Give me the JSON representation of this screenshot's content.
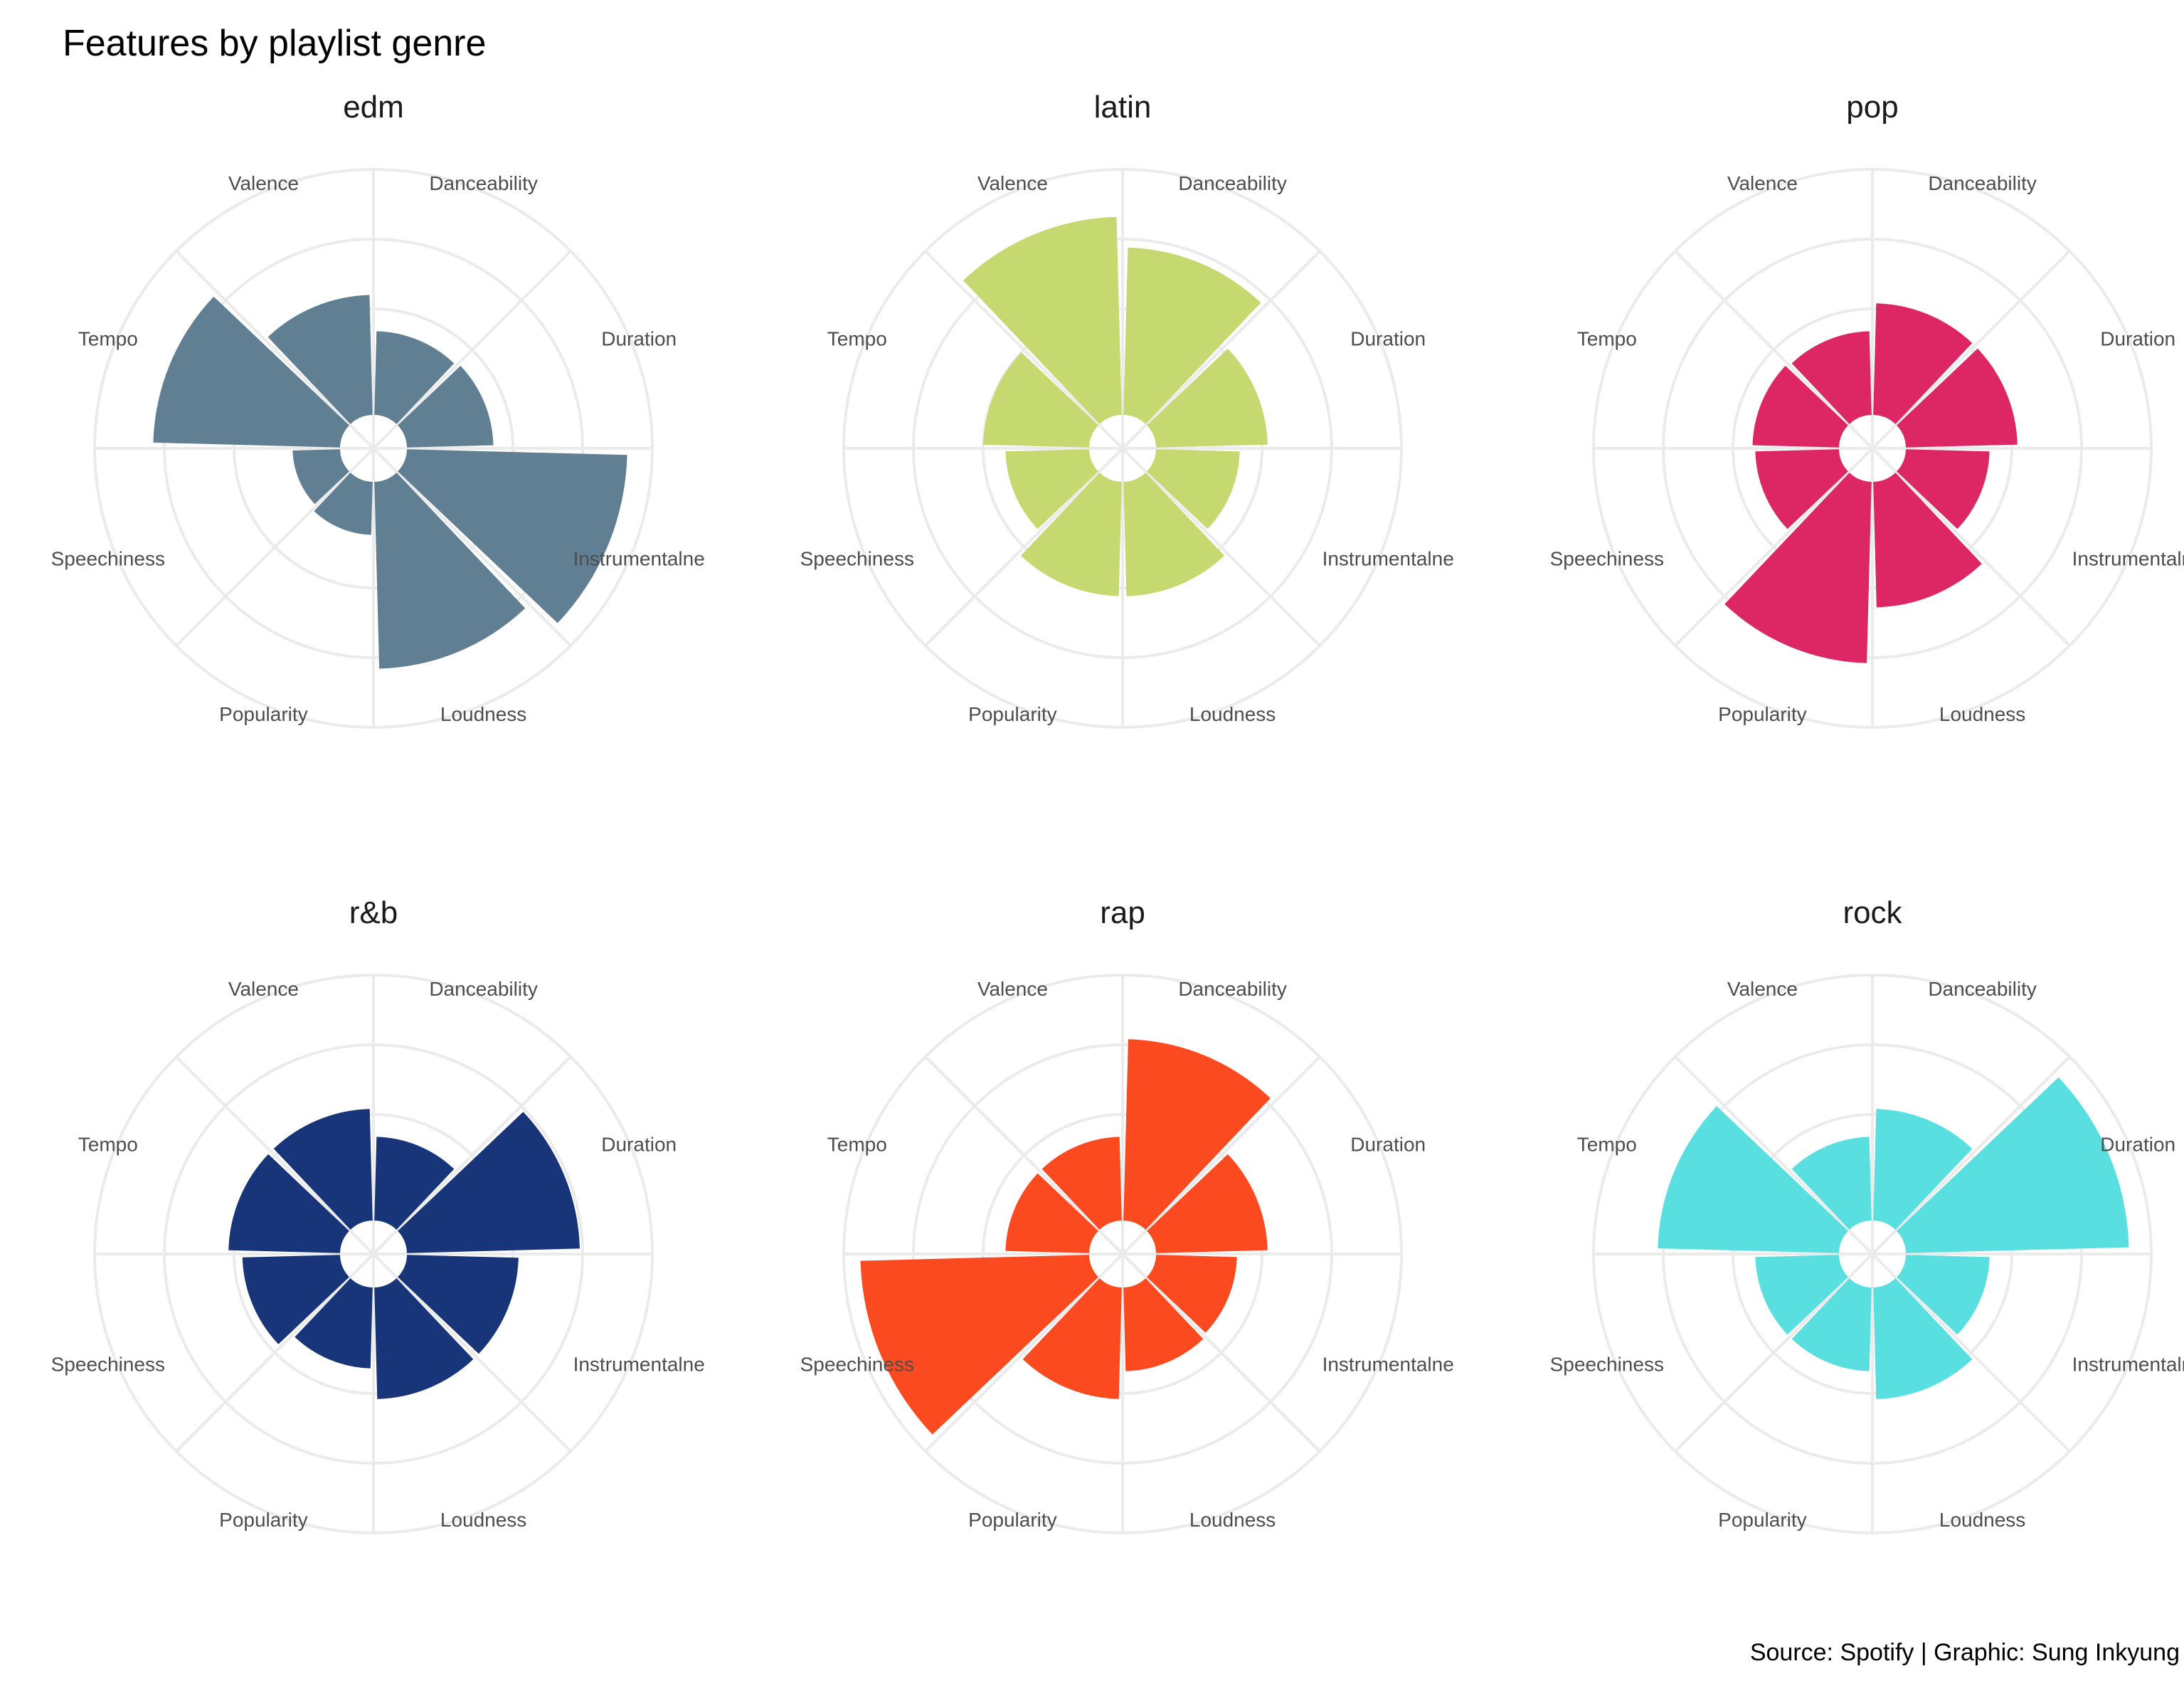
{
  "title": "Features by playlist genre",
  "caption": "Source: Spotify | Graphic: Sung Inkyung",
  "chart_data": {
    "type": "bar",
    "coord": "polar",
    "features": [
      "Danceability",
      "Duration",
      "Instrumentalne",
      "Loudness",
      "Popularity",
      "Speechiness",
      "Tempo",
      "Valence"
    ],
    "scale": {
      "min": 0,
      "max": 1,
      "gridlines": [
        0.25,
        0.5,
        0.75,
        1.0
      ],
      "grid": true,
      "tick_labels_shown": false
    },
    "panels": [
      {
        "genre": "edm",
        "color": "#607F93",
        "values": [
          0.42,
          0.43,
          0.91,
          0.79,
          0.31,
          0.29,
          0.79,
          0.55
        ]
      },
      {
        "genre": "latin",
        "color": "#C6D870",
        "values": [
          0.72,
          0.52,
          0.42,
          0.53,
          0.53,
          0.42,
          0.5,
          0.83
        ]
      },
      {
        "genre": "pop",
        "color": "#DD2765",
        "values": [
          0.52,
          0.52,
          0.42,
          0.57,
          0.77,
          0.42,
          0.43,
          0.42
        ]
      },
      {
        "genre": "r&b",
        "color": "#19357A",
        "values": [
          0.42,
          0.74,
          0.52,
          0.52,
          0.41,
          0.47,
          0.52,
          0.52
        ]
      },
      {
        "genre": "rap",
        "color": "#FB4A1F",
        "values": [
          0.77,
          0.52,
          0.41,
          0.42,
          0.52,
          0.94,
          0.42,
          0.42
        ]
      },
      {
        "genre": "rock",
        "color": "#5ADFE1",
        "values": [
          0.52,
          0.92,
          0.42,
          0.52,
          0.42,
          0.42,
          0.77,
          0.42
        ]
      }
    ]
  }
}
